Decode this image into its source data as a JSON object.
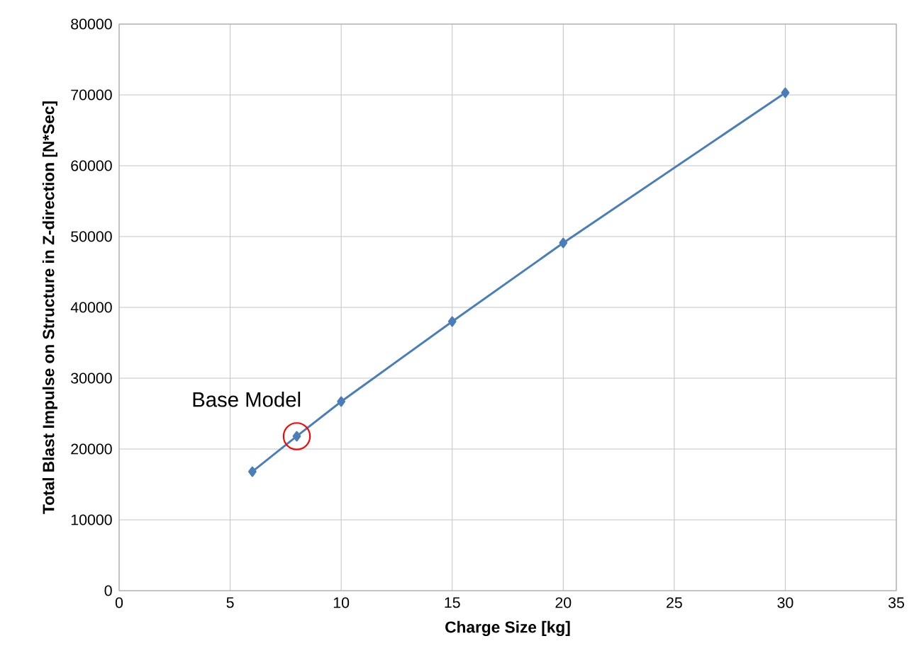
{
  "chart_data": {
    "type": "line",
    "xlabel": "Charge Size [kg]",
    "ylabel": "Total Blast Impulse on Structure in Z-direction [N*Sec]",
    "x": [
      6,
      8,
      10,
      15,
      20,
      30
    ],
    "values": [
      16800,
      21800,
      26700,
      38000,
      49100,
      70300
    ],
    "color": "#4a7ebb",
    "marker": "diamond",
    "line_style": "solid",
    "grid": true,
    "xlim": [
      0,
      35
    ],
    "xticks": [
      0,
      5,
      10,
      15,
      20,
      25,
      30,
      35
    ],
    "ylim": [
      0,
      80000
    ],
    "yticks": [
      0,
      10000,
      20000,
      30000,
      40000,
      50000,
      60000,
      70000,
      80000
    ],
    "annotations": [
      {
        "text": "Base Model",
        "x": 8,
        "y": 21800
      }
    ]
  }
}
